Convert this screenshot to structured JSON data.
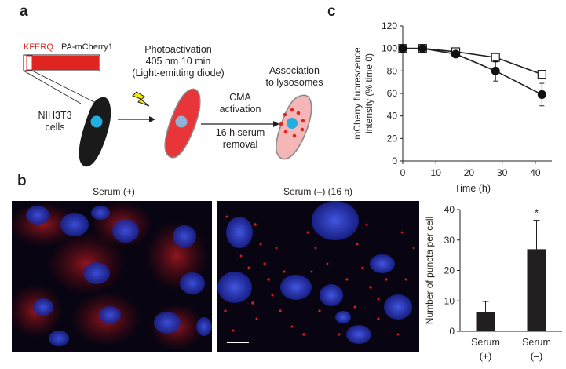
{
  "panels": {
    "a": {
      "letter": "a",
      "construct_kferq": "KFERQ",
      "construct_name": "PA-mCherry1",
      "photoactivation": [
        "Photoactivation",
        "405 nm 10 min",
        "(Light-emitting diode)"
      ],
      "cells": [
        "NIH3T3",
        "cells"
      ],
      "cma": [
        "CMA",
        "activation",
        "16 h serum",
        "removal"
      ],
      "association": [
        "Association",
        "to lysosomes"
      ],
      "colors": {
        "construct_red": "#e0241f",
        "cell_black": "#1a1a1a",
        "cell_red": "#e8353a",
        "cell_pink": "#f4b6b6",
        "nucleus_blue": "#22aee0",
        "bolt_yellow": "#f2e500"
      },
      "icons": [
        "lightning-bolt-icon",
        "arrow-right-icon"
      ]
    },
    "b": {
      "letter": "b",
      "image_titles": [
        "Serum (+)",
        "Serum (–) (16 h)"
      ],
      "colors": {
        "background": "#080412",
        "nuclei": "#3a4ed8",
        "mcherry": "#d21e24"
      }
    },
    "c": {
      "letter": "c"
    }
  },
  "chart_data": [
    {
      "type": "line",
      "panel": "c",
      "xlabel": "Time (h)",
      "ylabel": "mCherry fluorescence intensity (% time 0)",
      "xlim": [
        0,
        45
      ],
      "ylim": [
        0,
        120
      ],
      "xticks": [
        0,
        10,
        20,
        30,
        40
      ],
      "yticks": [
        0,
        20,
        40,
        60,
        80,
        100,
        120
      ],
      "series": [
        {
          "marker": "open-square",
          "x": [
            0,
            6,
            16,
            28,
            42
          ],
          "y": [
            100,
            100,
            97,
            92,
            77
          ],
          "err": [
            1,
            1,
            2,
            4,
            2
          ]
        },
        {
          "marker": "filled-circle",
          "x": [
            0,
            6,
            16,
            28,
            42
          ],
          "y": [
            100,
            100,
            95,
            80,
            59
          ],
          "err": [
            1,
            1,
            2,
            9,
            10
          ]
        }
      ]
    },
    {
      "type": "bar",
      "panel": "b",
      "categories": [
        [
          "Serum",
          "(+)"
        ],
        [
          "Serum",
          "(–)"
        ]
      ],
      "values": [
        6.3,
        27
      ],
      "errors": [
        3.5,
        9.5
      ],
      "significance": [
        "",
        "*"
      ],
      "ylabel": "Number of puncta per cell",
      "ylim": [
        0,
        40
      ],
      "yticks": [
        0,
        10,
        20,
        30,
        40
      ]
    }
  ]
}
